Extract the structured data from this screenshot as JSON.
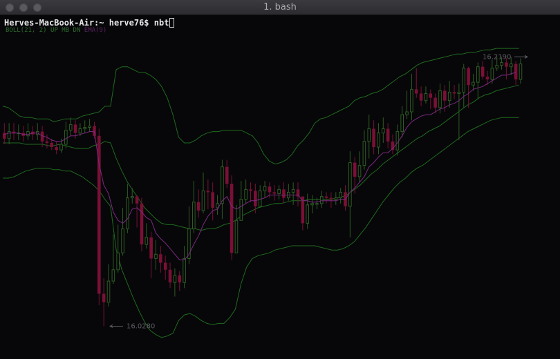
{
  "window": {
    "title": "1. bash",
    "controls": [
      "close",
      "minimize",
      "zoom"
    ]
  },
  "terminal": {
    "prompt": "Herves-MacBook-Air:~ herve76$ ",
    "command": "nbt"
  },
  "colors": {
    "background": "#070709",
    "bollinger": "#1f6b1f",
    "ema": "#7b2a80",
    "candle_up": "#2e5c23",
    "candle_down": "#7a1035",
    "annotation": "#5c5c62"
  },
  "chart_data": {
    "type": "candlestick",
    "legend": [
      "BOLL(21, 2) UP MB DN",
      "EMA(9)"
    ],
    "ylim": [
      16.015,
      16.228
    ],
    "max_label": "16.2190",
    "min_label": "16.0280",
    "candles": [
      [
        16.165,
        16.161,
        16.172,
        16.157
      ],
      [
        16.161,
        16.166,
        16.172,
        16.157
      ],
      [
        16.166,
        16.165,
        16.172,
        16.16
      ],
      [
        16.165,
        16.165,
        16.171,
        16.16
      ],
      [
        16.165,
        16.163,
        16.17,
        16.159
      ],
      [
        16.163,
        16.166,
        16.172,
        16.16
      ],
      [
        16.166,
        16.164,
        16.17,
        16.16
      ],
      [
        16.164,
        16.166,
        16.172,
        16.16
      ],
      [
        16.166,
        16.159,
        16.17,
        16.155
      ],
      [
        16.159,
        16.158,
        16.164,
        16.154
      ],
      [
        16.158,
        16.155,
        16.161,
        16.153
      ],
      [
        16.155,
        16.153,
        16.159,
        16.15
      ],
      [
        16.153,
        16.157,
        16.161,
        16.151
      ],
      [
        16.157,
        16.167,
        16.173,
        16.154
      ],
      [
        16.167,
        16.171,
        16.176,
        16.163
      ],
      [
        16.171,
        16.165,
        16.174,
        16.161
      ],
      [
        16.165,
        16.168,
        16.172,
        16.163
      ],
      [
        16.168,
        16.169,
        16.174,
        16.165
      ],
      [
        16.169,
        16.17,
        16.175,
        16.166
      ],
      [
        16.17,
        16.163,
        16.173,
        16.161
      ],
      [
        16.163,
        16.051,
        16.168,
        16.043
      ],
      [
        16.051,
        16.045,
        16.062,
        16.028
      ],
      [
        16.045,
        16.06,
        16.072,
        16.042
      ],
      [
        16.06,
        16.068,
        16.093,
        16.058
      ],
      [
        16.068,
        16.08,
        16.1,
        16.066
      ],
      [
        16.08,
        16.097,
        16.112,
        16.078
      ],
      [
        16.097,
        16.119,
        16.129,
        16.094
      ],
      [
        16.119,
        16.12,
        16.126,
        16.115
      ],
      [
        16.12,
        16.115,
        16.121,
        16.098
      ],
      [
        16.115,
        16.086,
        16.119,
        16.081
      ],
      [
        16.086,
        16.091,
        16.101,
        16.083
      ],
      [
        16.091,
        16.076,
        16.095,
        16.062
      ],
      [
        16.076,
        16.079,
        16.089,
        16.068
      ],
      [
        16.079,
        16.073,
        16.085,
        16.066
      ],
      [
        16.073,
        16.068,
        16.078,
        16.061
      ],
      [
        16.068,
        16.059,
        16.073,
        16.055
      ],
      [
        16.059,
        16.064,
        16.069,
        16.049
      ],
      [
        16.064,
        16.059,
        16.067,
        16.053
      ],
      [
        16.059,
        16.076,
        16.085,
        16.055
      ],
      [
        16.076,
        16.097,
        16.113,
        16.072
      ],
      [
        16.097,
        16.116,
        16.131,
        16.094
      ],
      [
        16.116,
        16.11,
        16.125,
        16.105
      ],
      [
        16.11,
        16.124,
        16.137,
        16.108
      ],
      [
        16.124,
        16.123,
        16.132,
        16.111
      ],
      [
        16.123,
        16.112,
        16.13,
        16.103
      ],
      [
        16.112,
        16.115,
        16.121,
        16.107
      ],
      [
        16.115,
        16.141,
        16.146,
        16.104
      ],
      [
        16.141,
        16.129,
        16.146,
        16.126
      ],
      [
        16.129,
        16.08,
        16.135,
        16.075
      ],
      [
        16.08,
        16.103,
        16.114,
        16.095
      ],
      [
        16.103,
        16.118,
        16.131,
        16.112
      ],
      [
        16.118,
        16.125,
        16.132,
        16.115
      ],
      [
        16.125,
        16.124,
        16.13,
        16.116
      ],
      [
        16.124,
        16.113,
        16.129,
        16.108
      ],
      [
        16.113,
        16.124,
        16.128,
        16.118
      ],
      [
        16.124,
        16.127,
        16.131,
        16.119
      ],
      [
        16.127,
        16.123,
        16.13,
        16.119
      ],
      [
        16.123,
        16.122,
        16.128,
        16.117
      ],
      [
        16.122,
        16.125,
        16.128,
        16.118
      ],
      [
        16.125,
        16.119,
        16.13,
        16.115
      ],
      [
        16.119,
        16.123,
        16.129,
        16.117
      ],
      [
        16.123,
        16.125,
        16.13,
        16.114
      ],
      [
        16.125,
        16.12,
        16.13,
        16.113
      ],
      [
        16.12,
        16.101,
        16.12,
        16.096
      ],
      [
        16.101,
        16.114,
        16.122,
        16.097
      ],
      [
        16.114,
        16.115,
        16.121,
        16.108
      ],
      [
        16.115,
        16.115,
        16.119,
        16.111
      ],
      [
        16.115,
        16.12,
        16.124,
        16.112
      ],
      [
        16.12,
        16.119,
        16.123,
        16.115
      ],
      [
        16.119,
        16.118,
        16.123,
        16.112
      ],
      [
        16.118,
        16.119,
        16.123,
        16.114
      ],
      [
        16.119,
        16.123,
        16.126,
        16.115
      ],
      [
        16.123,
        16.113,
        16.128,
        16.11
      ],
      [
        16.113,
        16.144,
        16.152,
        16.091
      ],
      [
        16.144,
        16.134,
        16.148,
        16.122
      ],
      [
        16.134,
        16.142,
        16.152,
        16.13
      ],
      [
        16.142,
        16.159,
        16.167,
        16.139
      ],
      [
        16.159,
        16.168,
        16.178,
        16.147
      ],
      [
        16.168,
        16.155,
        16.174,
        16.15
      ],
      [
        16.155,
        16.165,
        16.172,
        16.15
      ],
      [
        16.165,
        16.168,
        16.176,
        16.158
      ],
      [
        16.168,
        16.159,
        16.172,
        16.154
      ],
      [
        16.159,
        16.153,
        16.164,
        16.15
      ],
      [
        16.153,
        16.166,
        16.171,
        16.149
      ],
      [
        16.166,
        16.178,
        16.184,
        16.162
      ],
      [
        16.178,
        16.18,
        16.195,
        16.175
      ],
      [
        16.18,
        16.196,
        16.207,
        16.174
      ],
      [
        16.196,
        16.193,
        16.211,
        16.19
      ],
      [
        16.193,
        16.188,
        16.198,
        16.184
      ],
      [
        16.188,
        16.193,
        16.198,
        16.186
      ],
      [
        16.193,
        16.19,
        16.196,
        16.182
      ],
      [
        16.19,
        16.183,
        16.193,
        16.179
      ],
      [
        16.183,
        16.195,
        16.2,
        16.179
      ],
      [
        16.195,
        16.188,
        16.199,
        16.18
      ],
      [
        16.188,
        16.194,
        16.202,
        16.183
      ],
      [
        16.194,
        16.193,
        16.199,
        16.189
      ],
      [
        16.193,
        16.194,
        16.2,
        16.16
      ],
      [
        16.194,
        16.211,
        16.214,
        16.183
      ],
      [
        16.211,
        16.199,
        16.212,
        16.183
      ],
      [
        16.199,
        16.201,
        16.207,
        16.195
      ],
      [
        16.201,
        16.212,
        16.215,
        16.189
      ],
      [
        16.212,
        16.205,
        16.216,
        16.203
      ],
      [
        16.205,
        16.203,
        16.209,
        16.199
      ],
      [
        16.203,
        16.211,
        16.217,
        16.2
      ],
      [
        16.211,
        16.213,
        16.219,
        16.209
      ],
      [
        16.213,
        16.215,
        16.219,
        16.21
      ],
      [
        16.215,
        16.212,
        16.218,
        16.203
      ],
      [
        16.212,
        16.214,
        16.219,
        16.206
      ],
      [
        16.214,
        16.203,
        16.216,
        16.199
      ],
      [
        16.203,
        16.214,
        16.218,
        16.2
      ]
    ],
    "ema": [
      16.164,
      16.165,
      16.165,
      16.165,
      16.164,
      16.164,
      16.165,
      16.165,
      16.163,
      16.162,
      16.16,
      16.159,
      16.159,
      16.161,
      16.163,
      16.163,
      16.164,
      16.165,
      16.166,
      16.166,
      16.143,
      16.128,
      16.122,
      16.109,
      16.103,
      16.101,
      16.104,
      16.111,
      16.112,
      16.109,
      16.105,
      16.103,
      16.094,
      16.09,
      16.087,
      16.083,
      16.079,
      16.075,
      16.075,
      16.079,
      16.086,
      16.092,
      16.1,
      16.106,
      16.11,
      16.111,
      16.117,
      16.12,
      16.113,
      16.111,
      16.113,
      16.115,
      16.117,
      16.117,
      16.118,
      16.119,
      16.121,
      16.121,
      16.121,
      16.121,
      16.121,
      16.121,
      16.121,
      16.117,
      16.117,
      16.116,
      16.116,
      16.117,
      16.117,
      16.117,
      16.117,
      16.118,
      16.118,
      16.123,
      16.126,
      16.13,
      16.134,
      16.141,
      16.144,
      16.148,
      16.151,
      16.151,
      16.154,
      16.158,
      16.163,
      16.169,
      16.173,
      16.175,
      16.177,
      16.178,
      16.178,
      16.18,
      16.182,
      16.183,
      16.185,
      16.186,
      16.188,
      16.191,
      16.193,
      16.196,
      16.197,
      16.198,
      16.2,
      16.202,
      16.204,
      16.206,
      16.206,
      16.207,
      16.208
    ],
    "bollinger": {
      "upper": [
        16.184,
        16.183,
        16.18,
        16.177,
        16.176,
        16.176,
        16.175,
        16.175,
        16.175,
        16.173,
        16.174,
        16.175,
        16.175,
        16.175,
        16.177,
        16.178,
        16.179,
        16.18,
        16.184,
        16.184,
        16.21,
        16.212,
        16.212,
        16.21,
        16.208,
        16.208,
        16.206,
        16.203,
        16.198,
        16.19,
        16.178,
        16.162,
        16.158,
        16.158,
        16.16,
        16.163,
        16.165,
        16.166,
        16.166,
        16.167,
        16.167,
        16.167,
        16.167,
        16.165,
        16.163,
        16.158,
        16.15,
        16.145,
        16.143,
        16.144,
        16.146,
        16.15,
        16.156,
        16.16,
        16.165,
        16.172,
        16.175,
        16.176,
        16.178,
        16.18,
        16.182,
        16.184,
        16.188,
        16.19,
        16.191,
        16.193,
        16.194,
        16.196,
        16.199,
        16.202,
        16.205,
        16.207,
        16.21,
        16.213,
        16.215,
        16.216,
        16.217,
        16.218,
        16.219,
        16.22,
        16.221,
        16.221,
        16.222,
        16.222,
        16.223,
        16.224,
        16.224,
        16.225,
        16.225,
        16.225,
        16.225,
        16.225
      ],
      "middle": [
        16.158,
        16.158,
        16.158,
        16.158,
        16.157,
        16.157,
        16.157,
        16.157,
        16.156,
        16.156,
        16.157,
        16.156,
        16.155,
        16.154,
        16.154,
        16.154,
        16.156,
        16.157,
        16.159,
        16.158,
        16.147,
        16.138,
        16.13,
        16.124,
        16.118,
        16.112,
        16.108,
        16.104,
        16.101,
        16.1,
        16.1,
        16.099,
        16.098,
        16.097,
        16.097,
        16.096,
        16.097,
        16.097,
        16.098,
        16.1,
        16.101,
        16.103,
        16.106,
        16.108,
        16.11,
        16.112,
        16.113,
        16.114,
        16.115,
        16.115,
        16.116,
        16.117,
        16.117,
        16.117,
        16.118,
        16.118,
        16.118,
        16.118,
        16.118,
        16.119,
        16.12,
        16.122,
        16.125,
        16.128,
        16.132,
        16.136,
        16.139,
        16.143,
        16.146,
        16.149,
        16.152,
        16.155,
        16.158,
        16.161,
        16.163,
        16.166,
        16.168,
        16.17,
        16.173,
        16.176,
        16.179,
        16.182,
        16.185,
        16.187,
        16.19,
        16.192,
        16.193,
        16.195,
        16.196,
        16.197,
        16.198,
        16.199
      ],
      "lower": [
        16.133,
        16.133,
        16.134,
        16.136,
        16.138,
        16.139,
        16.14,
        16.14,
        16.14,
        16.139,
        16.139,
        16.138,
        16.138,
        16.136,
        16.134,
        16.131,
        16.128,
        16.124,
        16.118,
        16.113,
        16.082,
        16.068,
        16.058,
        16.048,
        16.039,
        16.031,
        16.025,
        16.022,
        16.02,
        16.021,
        16.023,
        16.032,
        16.036,
        16.037,
        16.035,
        16.032,
        16.03,
        16.029,
        16.03,
        16.03,
        16.034,
        16.04,
        16.058,
        16.07,
        16.076,
        16.078,
        16.079,
        16.08,
        16.082,
        16.083,
        16.084,
        16.085,
        16.085,
        16.085,
        16.085,
        16.085,
        16.084,
        16.083,
        16.082,
        16.082,
        16.083,
        16.085,
        16.088,
        16.093,
        16.098,
        16.104,
        16.11,
        16.116,
        16.121,
        16.126,
        16.13,
        16.133,
        16.137,
        16.14,
        16.142,
        16.145,
        16.148,
        16.151,
        16.154,
        16.157,
        16.16,
        16.163,
        16.166,
        16.168,
        16.17,
        16.172,
        16.174,
        16.175,
        16.176,
        16.176,
        16.176,
        16.176
      ]
    }
  }
}
